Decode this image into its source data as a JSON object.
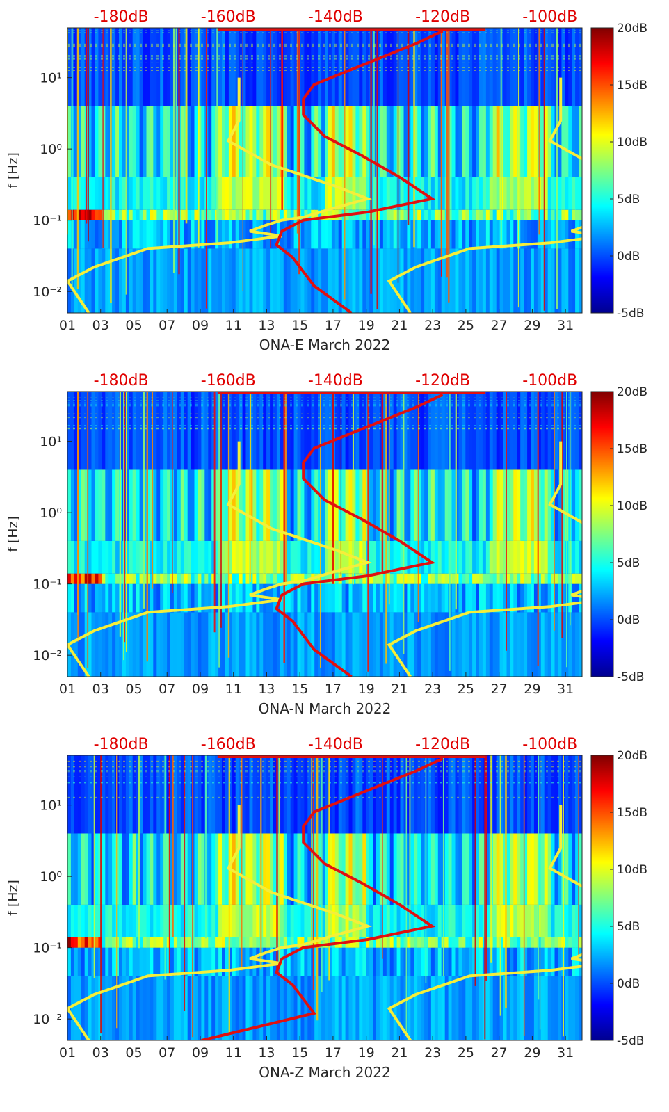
{
  "colors": {
    "spectrum_curve": "#e01010",
    "noise_model": "#f5ee3a",
    "top_labels": "#e00000"
  },
  "chart_data": [
    {
      "type": "heatmap",
      "station": "ONA-E",
      "xlabel": "ONA-E March 2022",
      "ylabel": "f [Hz]",
      "x_ticks": [
        "01",
        "03",
        "05",
        "07",
        "09",
        "11",
        "13",
        "15",
        "17",
        "19",
        "21",
        "23",
        "25",
        "27",
        "29",
        "31"
      ],
      "y_ticks": [
        {
          "label": "10⁻²",
          "value": 0.01
        },
        {
          "label": "10⁻¹",
          "value": 0.1
        },
        {
          "label": "10⁰",
          "value": 1
        },
        {
          "label": "10¹",
          "value": 10
        }
      ],
      "top_ticks": [
        "-180dB",
        "-160dB",
        "-140dB",
        "-120dB",
        "-100dB"
      ],
      "colorbar": [
        "20dB",
        "15dB",
        "10dB",
        "5dB",
        "0dB",
        "-5dB"
      ],
      "xlim": [
        1,
        32
      ],
      "ylim": [
        0.005,
        50
      ],
      "yscale": "log",
      "top_axis_range_db": [
        -190,
        -94
      ],
      "colorbar_range_db": [
        -5,
        20
      ]
    },
    {
      "type": "heatmap",
      "station": "ONA-N",
      "xlabel": "ONA-N March 2022",
      "ylabel": "f [Hz]",
      "x_ticks": [
        "01",
        "03",
        "05",
        "07",
        "09",
        "11",
        "13",
        "15",
        "17",
        "19",
        "21",
        "23",
        "25",
        "27",
        "29",
        "31"
      ],
      "y_ticks": [
        {
          "label": "10⁻²",
          "value": 0.01
        },
        {
          "label": "10⁻¹",
          "value": 0.1
        },
        {
          "label": "10⁰",
          "value": 1
        },
        {
          "label": "10¹",
          "value": 10
        }
      ],
      "top_ticks": [
        "-180dB",
        "-160dB",
        "-140dB",
        "-120dB",
        "-100dB"
      ],
      "colorbar": [
        "20dB",
        "15dB",
        "10dB",
        "5dB",
        "0dB",
        "-5dB"
      ],
      "xlim": [
        1,
        32
      ],
      "ylim": [
        0.005,
        50
      ],
      "yscale": "log",
      "top_axis_range_db": [
        -190,
        -94
      ],
      "colorbar_range_db": [
        -5,
        20
      ]
    },
    {
      "type": "heatmap",
      "station": "ONA-Z",
      "xlabel": "ONA-Z March 2022",
      "ylabel": "f [Hz]",
      "x_ticks": [
        "01",
        "03",
        "05",
        "07",
        "09",
        "11",
        "13",
        "15",
        "17",
        "19",
        "21",
        "23",
        "25",
        "27",
        "29",
        "31"
      ],
      "y_ticks": [
        {
          "label": "10⁻²",
          "value": 0.01
        },
        {
          "label": "10⁻¹",
          "value": 0.1
        },
        {
          "label": "10⁰",
          "value": 1
        },
        {
          "label": "10¹",
          "value": 10
        }
      ],
      "top_ticks": [
        "-180dB",
        "-160dB",
        "-140dB",
        "-120dB",
        "-100dB"
      ],
      "colorbar": [
        "20dB",
        "15dB",
        "10dB",
        "5dB",
        "0dB",
        "-5dB"
      ],
      "xlim": [
        1,
        32
      ],
      "ylim": [
        0.005,
        50
      ],
      "yscale": "log",
      "top_axis_range_db": [
        -190,
        -94
      ],
      "colorbar_range_db": [
        -5,
        20
      ]
    }
  ]
}
